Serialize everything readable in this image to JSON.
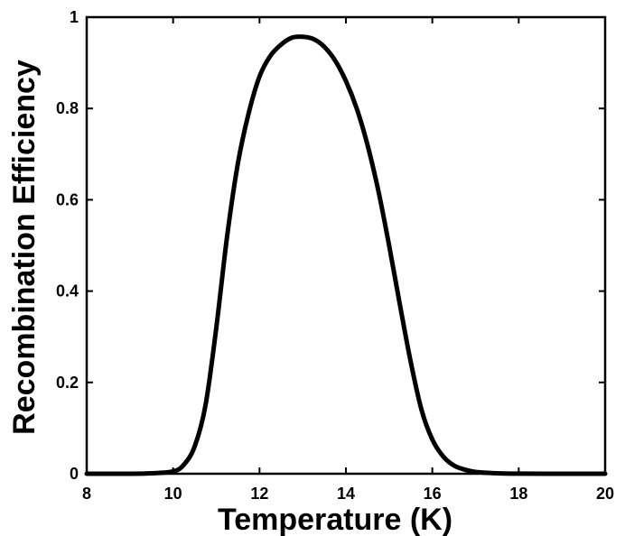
{
  "chart_data": {
    "type": "line",
    "title": "",
    "xlabel": "Temperature (K)",
    "ylabel": "Recombination Efficiency",
    "xlim": [
      8,
      20
    ],
    "ylim": [
      0,
      1
    ],
    "x_ticks": [
      8,
      10,
      12,
      14,
      16,
      18,
      20
    ],
    "y_ticks": [
      0,
      0.2,
      0.4,
      0.6,
      0.8,
      1
    ],
    "x_tick_labels": [
      "8",
      "10",
      "12",
      "14",
      "16",
      "18",
      "20"
    ],
    "y_tick_labels": [
      "0",
      "0.2",
      "0.4",
      "0.6",
      "0.8",
      "1"
    ],
    "grid": false,
    "line_color": "#000000",
    "series": [
      {
        "x": [
          8,
          9,
          9.5,
          10,
          10.25,
          10.5,
          10.75,
          11,
          11.25,
          11.5,
          11.75,
          12,
          12.25,
          12.5,
          12.75,
          13,
          13.25,
          13.5,
          13.75,
          14,
          14.25,
          14.5,
          14.75,
          15,
          15.25,
          15.5,
          15.75,
          16,
          16.25,
          16.5,
          16.75,
          17,
          17.5,
          18,
          19,
          20
        ],
        "y": [
          0,
          0,
          0.001,
          0.005,
          0.02,
          0.06,
          0.15,
          0.32,
          0.52,
          0.68,
          0.79,
          0.87,
          0.915,
          0.94,
          0.955,
          0.957,
          0.952,
          0.935,
          0.905,
          0.86,
          0.8,
          0.72,
          0.62,
          0.5,
          0.37,
          0.245,
          0.14,
          0.075,
          0.038,
          0.018,
          0.009,
          0.004,
          0.001,
          0.0002,
          0,
          0
        ]
      }
    ]
  }
}
